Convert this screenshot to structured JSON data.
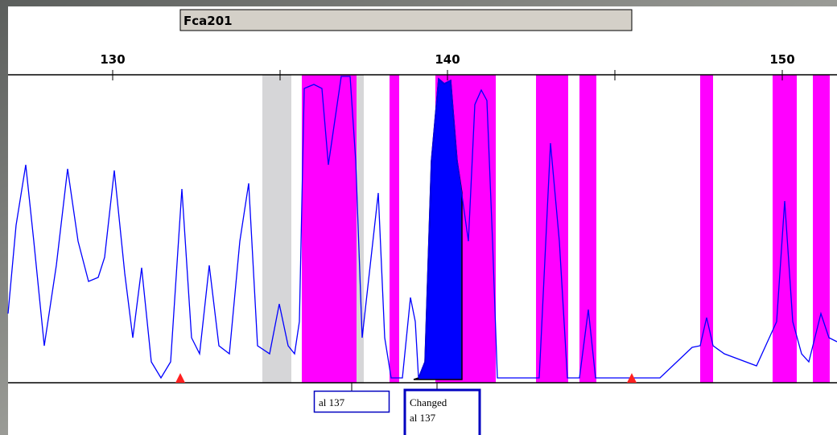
{
  "header": {
    "marker": "Fca201"
  },
  "axis": {
    "ticks": [
      130,
      140,
      150
    ]
  },
  "labels": [
    {
      "text": "al 137"
    },
    {
      "lines": [
        "Changed",
        "al 137"
      ]
    }
  ]
}
